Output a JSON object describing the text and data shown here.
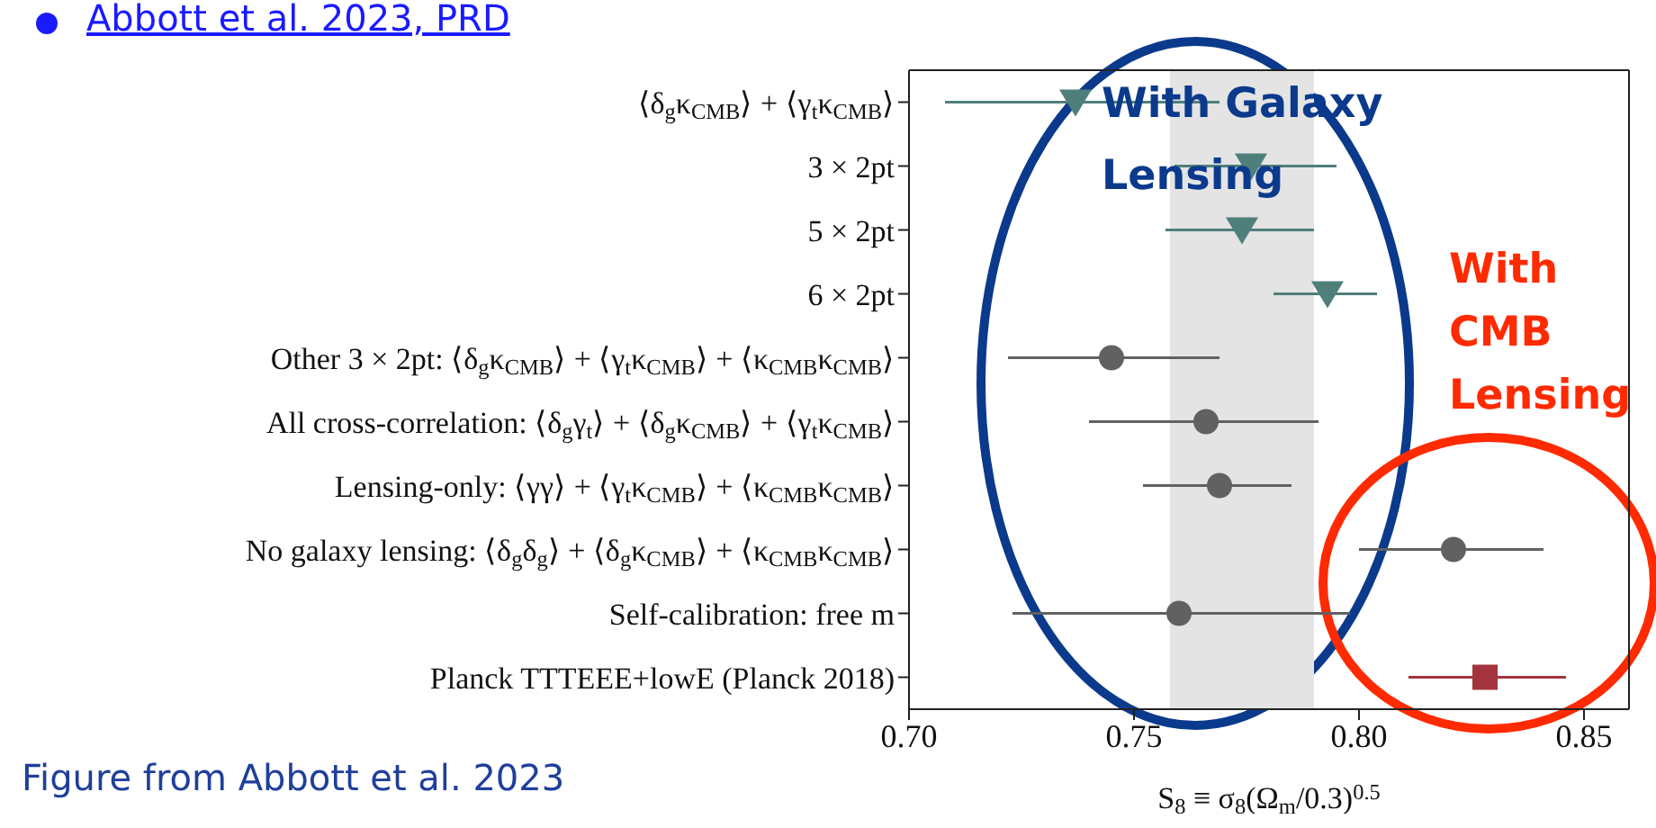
{
  "chart_data": {
    "type": "scatter",
    "orientation": "horizontal",
    "xlabel": "S$_{8}$ ≡ σ$_{8}$(Ω$_{m}$/0.3)$^{0.5}$",
    "categories": [
      "⟨δ$_{g}$κ$_{CMB}$⟩ + ⟨γ$_{t}$κ$_{CMB}$⟩",
      "3 × 2pt",
      "5 × 2pt",
      "6 × 2pt",
      "Other 3 × 2pt: ⟨δ$_{g}$κ$_{CMB}$⟩ + ⟨γ$_{t}$κ$_{CMB}$⟩ + ⟨κ$_{CMB}$κ$_{CMB}$⟩",
      "All cross-correlation: ⟨δ$_{g}$γ$_{t}$⟩ + ⟨δ$_{g}$κ$_{CMB}$⟩ + ⟨γ$_{t}$κ$_{CMB}$⟩",
      "Lensing-only: ⟨γγ⟩ + ⟨γ$_{t}$κ$_{CMB}$⟩ + ⟨κ$_{CMB}$κ$_{CMB}$⟩",
      "No galaxy lensing: ⟨δ$_{g}$δ$_{g}$⟩ + ⟨δ$_{g}$κ$_{CMB}$⟩ + ⟨κ$_{CMB}$κ$_{CMB}$⟩",
      "Self-calibration: free m",
      "Planck TTTEEE+lowE (Planck 2018)"
    ],
    "series": [
      {
        "color": "#4f7f7b",
        "marker": "triangle",
        "values": [
          0.737,
          0.776,
          0.774,
          0.793,
          null,
          null,
          null,
          null,
          null,
          null
        ],
        "errors": [
          [
            0.708,
            0.769
          ],
          [
            0.759,
            0.795
          ],
          [
            0.757,
            0.79
          ],
          [
            0.781,
            0.804
          ],
          null,
          null,
          null,
          null,
          null,
          null
        ]
      },
      {
        "color": "#616161",
        "marker": "circle",
        "values": [
          null,
          null,
          null,
          null,
          0.745,
          0.766,
          0.769,
          0.821,
          0.76,
          null
        ],
        "errors": [
          null,
          null,
          null,
          null,
          [
            0.722,
            0.769
          ],
          [
            0.74,
            0.791
          ],
          [
            0.752,
            0.785
          ],
          [
            0.8,
            0.841
          ],
          [
            0.723,
            0.798
          ],
          null
        ]
      },
      {
        "color": "#a3343e",
        "marker": "square",
        "values": [
          null,
          null,
          null,
          null,
          null,
          null,
          null,
          null,
          null,
          0.828
        ],
        "errors": [
          null,
          null,
          null,
          null,
          null,
          null,
          null,
          null,
          null,
          [
            0.811,
            0.846
          ]
        ]
      }
    ],
    "xlim": [
      0.7,
      0.86
    ],
    "xticks": [
      {
        "value": 0.7,
        "label": "0.70"
      },
      {
        "value": 0.75,
        "label": "0.75"
      },
      {
        "value": 0.8,
        "label": "0.80"
      },
      {
        "value": 0.85,
        "label": "0.85"
      }
    ],
    "bands": [
      {
        "axis": "x",
        "from": 0.758,
        "to": 0.79,
        "color": "#e4e4e4"
      }
    ],
    "grid": false,
    "legend": false,
    "annotations": [
      "Abbott et al. 2023, PRD",
      "With Galaxy Lensing",
      "With CMB Lensing",
      "Figure from Abbott et al. 2023"
    ]
  }
}
